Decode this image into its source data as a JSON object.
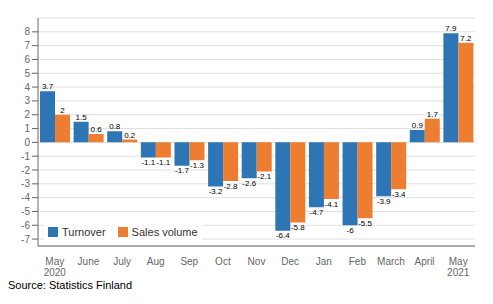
{
  "chart_data": {
    "type": "bar",
    "categories": [
      "May\n2020",
      "June",
      "July",
      "Aug",
      "Sep",
      "Oct",
      "Nov",
      "Dec",
      "Jan",
      "Feb",
      "March",
      "April",
      "May\n2021"
    ],
    "series": [
      {
        "name": "Turnover",
        "color": "#2e75b6",
        "values": [
          3.7,
          1.5,
          0.8,
          -1.1,
          -1.7,
          -3.2,
          -2.6,
          -6.4,
          -4.7,
          -6.0,
          -3.9,
          0.9,
          7.9
        ]
      },
      {
        "name": "Sales volume",
        "color": "#ed7d31",
        "values": [
          2.0,
          0.6,
          0.2,
          -1.1,
          -1.3,
          -2.8,
          -2.1,
          -5.8,
          -4.1,
          -5.5,
          -3.4,
          1.7,
          7.2
        ]
      }
    ],
    "ylim": [
      -7.5,
      9.0
    ],
    "yticks": [
      -7,
      -6,
      -5,
      -4,
      -3,
      -2,
      -1,
      0,
      1,
      2,
      3,
      4,
      5,
      6,
      7,
      8
    ],
    "grid": true,
    "legend": "lower left",
    "data_labels": true,
    "annotations": [
      "Source: Statistics Finland"
    ]
  }
}
